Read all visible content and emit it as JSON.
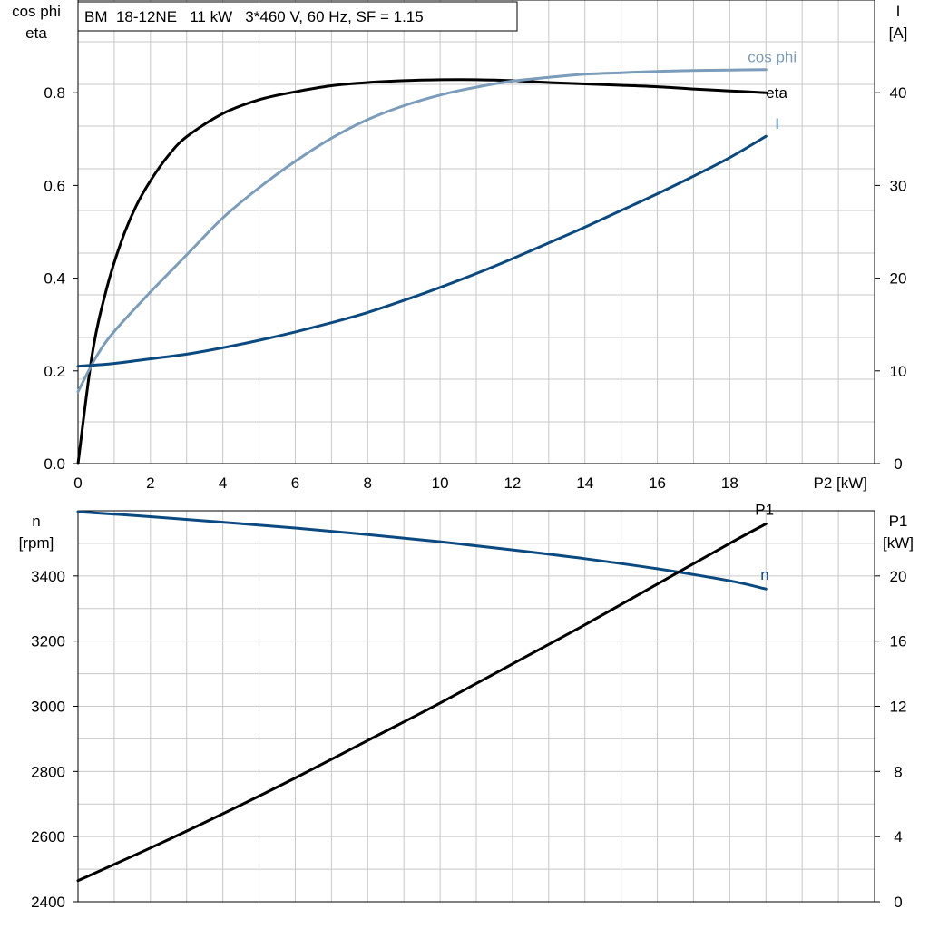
{
  "chart_data": [
    {
      "type": "line",
      "title": "BM  18-12NE   11 kW   3*460 V, 60 Hz, SF = 1.15",
      "xlabel": "P2 [kW]",
      "xlim": [
        0,
        22
      ],
      "x_ticks": [
        0,
        2,
        4,
        6,
        8,
        10,
        12,
        14,
        16,
        18
      ],
      "y_left": {
        "label_lines": [
          "cos phi",
          "eta"
        ],
        "lim": [
          0,
          1.0
        ],
        "ticks": [
          0.0,
          0.2,
          0.4,
          0.6,
          0.8
        ],
        "tick_decimals": 1
      },
      "y_right": {
        "label_lines": [
          "I",
          "[A]"
        ],
        "lim": [
          0,
          50
        ],
        "ticks": [
          0,
          10,
          20,
          30,
          40
        ],
        "tick_decimals": 0
      },
      "grid": true,
      "series": [
        {
          "name": "eta",
          "axis": "left",
          "color": "#000000",
          "label_color": "#000000",
          "x": [
            0,
            0.4,
            0.8,
            1.2,
            1.6,
            2,
            2.5,
            3,
            4,
            5,
            6,
            7,
            8,
            9,
            10,
            11,
            12,
            13,
            14,
            15,
            16,
            17,
            18,
            19
          ],
          "y": [
            0.0,
            0.24,
            0.38,
            0.48,
            0.555,
            0.61,
            0.665,
            0.705,
            0.755,
            0.785,
            0.802,
            0.815,
            0.822,
            0.826,
            0.828,
            0.828,
            0.826,
            0.822,
            0.819,
            0.816,
            0.813,
            0.808,
            0.804,
            0.8
          ]
        },
        {
          "name": "cos phi",
          "axis": "left",
          "color": "#7b9cbb",
          "label_color": "#7b9cbb",
          "x": [
            0,
            0.5,
            1,
            2,
            3,
            4,
            5,
            6,
            7,
            8,
            9,
            10,
            11,
            12,
            13,
            14,
            15,
            16,
            17,
            18,
            19
          ],
          "y": [
            0.155,
            0.23,
            0.285,
            0.37,
            0.45,
            0.53,
            0.595,
            0.652,
            0.702,
            0.742,
            0.772,
            0.795,
            0.812,
            0.825,
            0.833,
            0.84,
            0.843,
            0.846,
            0.848,
            0.849,
            0.85
          ]
        },
        {
          "name": "I",
          "axis": "right",
          "color": "#0b4a80",
          "label_color": "#0b4a80",
          "x": [
            0,
            1,
            2,
            3,
            4,
            5,
            6,
            7,
            8,
            9,
            10,
            11,
            12,
            13,
            14,
            15,
            16,
            17,
            18,
            19
          ],
          "y": [
            10.5,
            10.8,
            11.3,
            11.8,
            12.5,
            13.3,
            14.2,
            15.2,
            16.3,
            17.6,
            19.0,
            20.5,
            22.1,
            23.8,
            25.5,
            27.3,
            29.1,
            31.0,
            33.0,
            35.3
          ]
        }
      ]
    },
    {
      "type": "line",
      "xlim": [
        0,
        22
      ],
      "x_ticks": [
        0,
        2,
        4,
        6,
        8,
        10,
        12,
        14,
        16,
        18
      ],
      "y_left": {
        "label_lines": [
          "n",
          "[rpm]"
        ],
        "lim": [
          2400,
          3600
        ],
        "ticks": [
          2400,
          2600,
          2800,
          3000,
          3200,
          3400
        ],
        "tick_decimals": 0
      },
      "y_right": {
        "label_lines": [
          "P1",
          "[kW]"
        ],
        "lim": [
          0,
          24
        ],
        "ticks": [
          0,
          4,
          8,
          12,
          16,
          20
        ],
        "tick_decimals": 0
      },
      "grid": true,
      "series": [
        {
          "name": "n",
          "axis": "left",
          "color": "#0b4a80",
          "label_color": "#0b4a80",
          "x": [
            0,
            2,
            4,
            6,
            8,
            10,
            12,
            14,
            16,
            18,
            19
          ],
          "y": [
            3597,
            3582,
            3565,
            3547,
            3527,
            3505,
            3480,
            3453,
            3422,
            3385,
            3360
          ]
        },
        {
          "name": "P1",
          "axis": "right",
          "color": "#000000",
          "label_color": "#000000",
          "x": [
            0,
            2,
            4,
            6,
            8,
            10,
            12,
            14,
            16,
            18,
            19
          ],
          "y": [
            1.3,
            3.3,
            5.4,
            7.6,
            9.9,
            12.2,
            14.6,
            17.0,
            19.5,
            22.0,
            23.2
          ]
        }
      ]
    }
  ]
}
